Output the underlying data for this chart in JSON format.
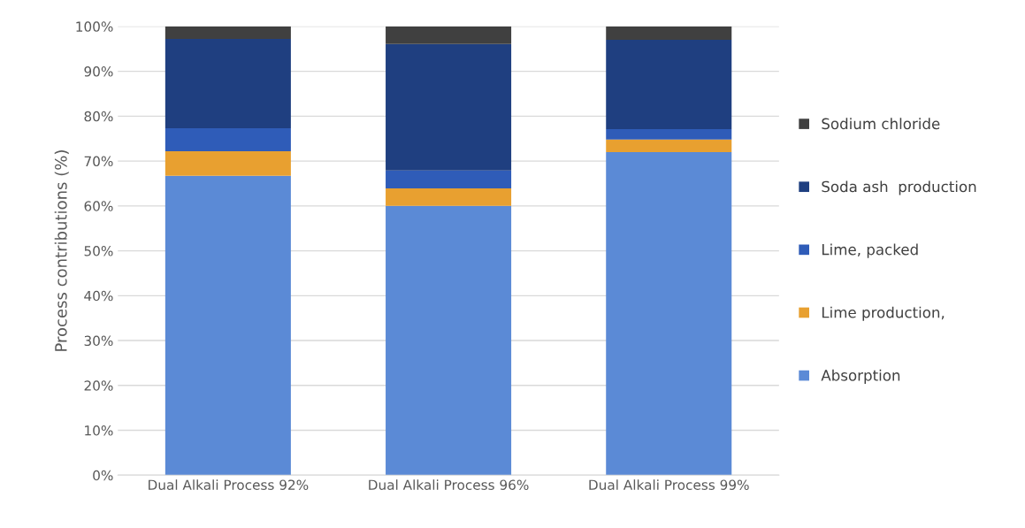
{
  "chart_data": {
    "type": "bar",
    "stacked": true,
    "ylabel": "Process contributions (%)",
    "categories": [
      "Dual Alkali Process 92%",
      "Dual Alkali Process 96%",
      "Dual Alkali Process 99%"
    ],
    "series": [
      {
        "name": "Absorption",
        "color": "#5b8ad6",
        "values": [
          66.7,
          60.0,
          72.0
        ]
      },
      {
        "name": "Lime production,",
        "color": "#e8a030",
        "values": [
          5.5,
          3.9,
          2.8
        ]
      },
      {
        "name": "Lime, packed",
        "color": "#2f5cb8",
        "values": [
          5.1,
          4.0,
          2.3
        ]
      },
      {
        "name": "Soda ash  production",
        "color": "#1f3f80",
        "values": [
          19.9,
          28.2,
          19.9
        ]
      },
      {
        "name": "Sodium chloride",
        "color": "#404040",
        "values": [
          2.8,
          3.9,
          3.0
        ]
      }
    ],
    "ylim": [
      0,
      100
    ],
    "yticks": [
      {
        "value": 0,
        "label": "0%"
      },
      {
        "value": 10,
        "label": "10%"
      },
      {
        "value": 20,
        "label": "20%"
      },
      {
        "value": 30,
        "label": "30%"
      },
      {
        "value": 40,
        "label": "40%"
      },
      {
        "value": 50,
        "label": "50%"
      },
      {
        "value": 60,
        "label": "60%"
      },
      {
        "value": 70,
        "label": "70%"
      },
      {
        "value": 80,
        "label": "80%"
      },
      {
        "value": 90,
        "label": "90%"
      },
      {
        "value": 100,
        "label": "100%"
      }
    ],
    "grid": "y",
    "legend": "right"
  }
}
